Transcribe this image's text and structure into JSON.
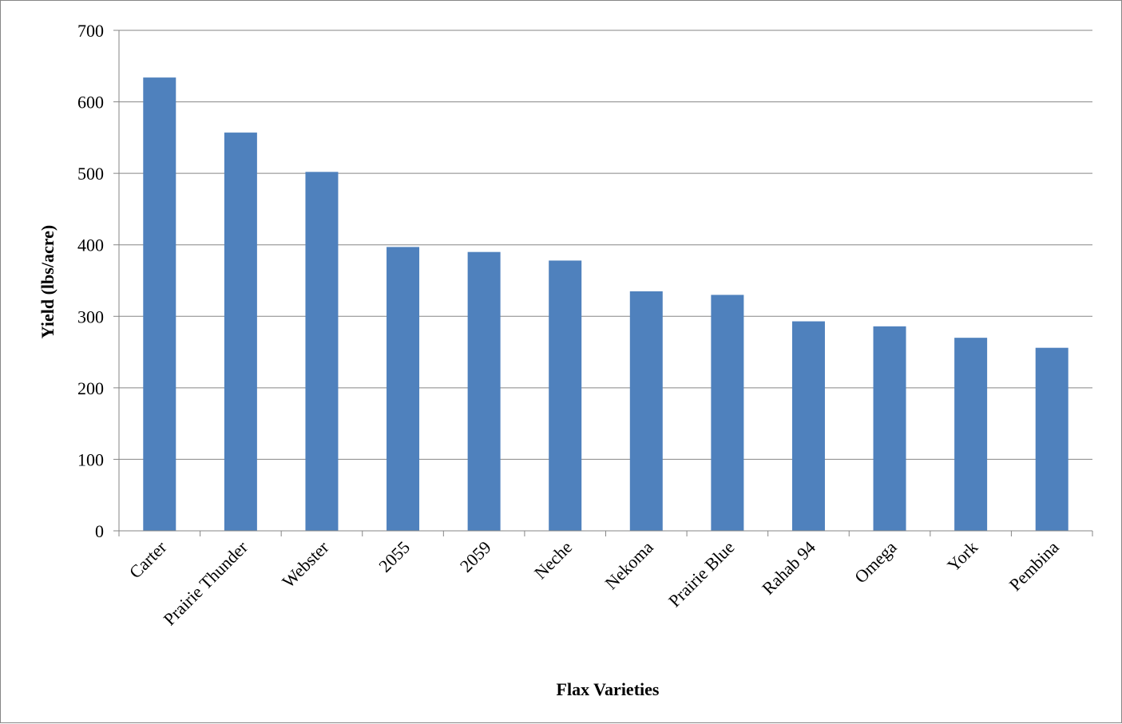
{
  "chart_data": {
    "type": "bar",
    "title": "",
    "xlabel": "Flax Varieties",
    "ylabel": "Yield (lbs/acre)",
    "ylim": [
      0,
      700
    ],
    "yticks": [
      0,
      100,
      200,
      300,
      400,
      500,
      600,
      700
    ],
    "grid": true,
    "legend": "none",
    "bar_color": "#4f81bd",
    "categories": [
      "Carter",
      "Prairie Thunder",
      "Webster",
      "2055",
      "2059",
      "Neche",
      "Nekoma",
      "Prairie Blue",
      "Rahab 94",
      "Omega",
      "York",
      "Pembina"
    ],
    "values": [
      634,
      557,
      502,
      397,
      390,
      378,
      335,
      330,
      293,
      286,
      270,
      256
    ]
  }
}
